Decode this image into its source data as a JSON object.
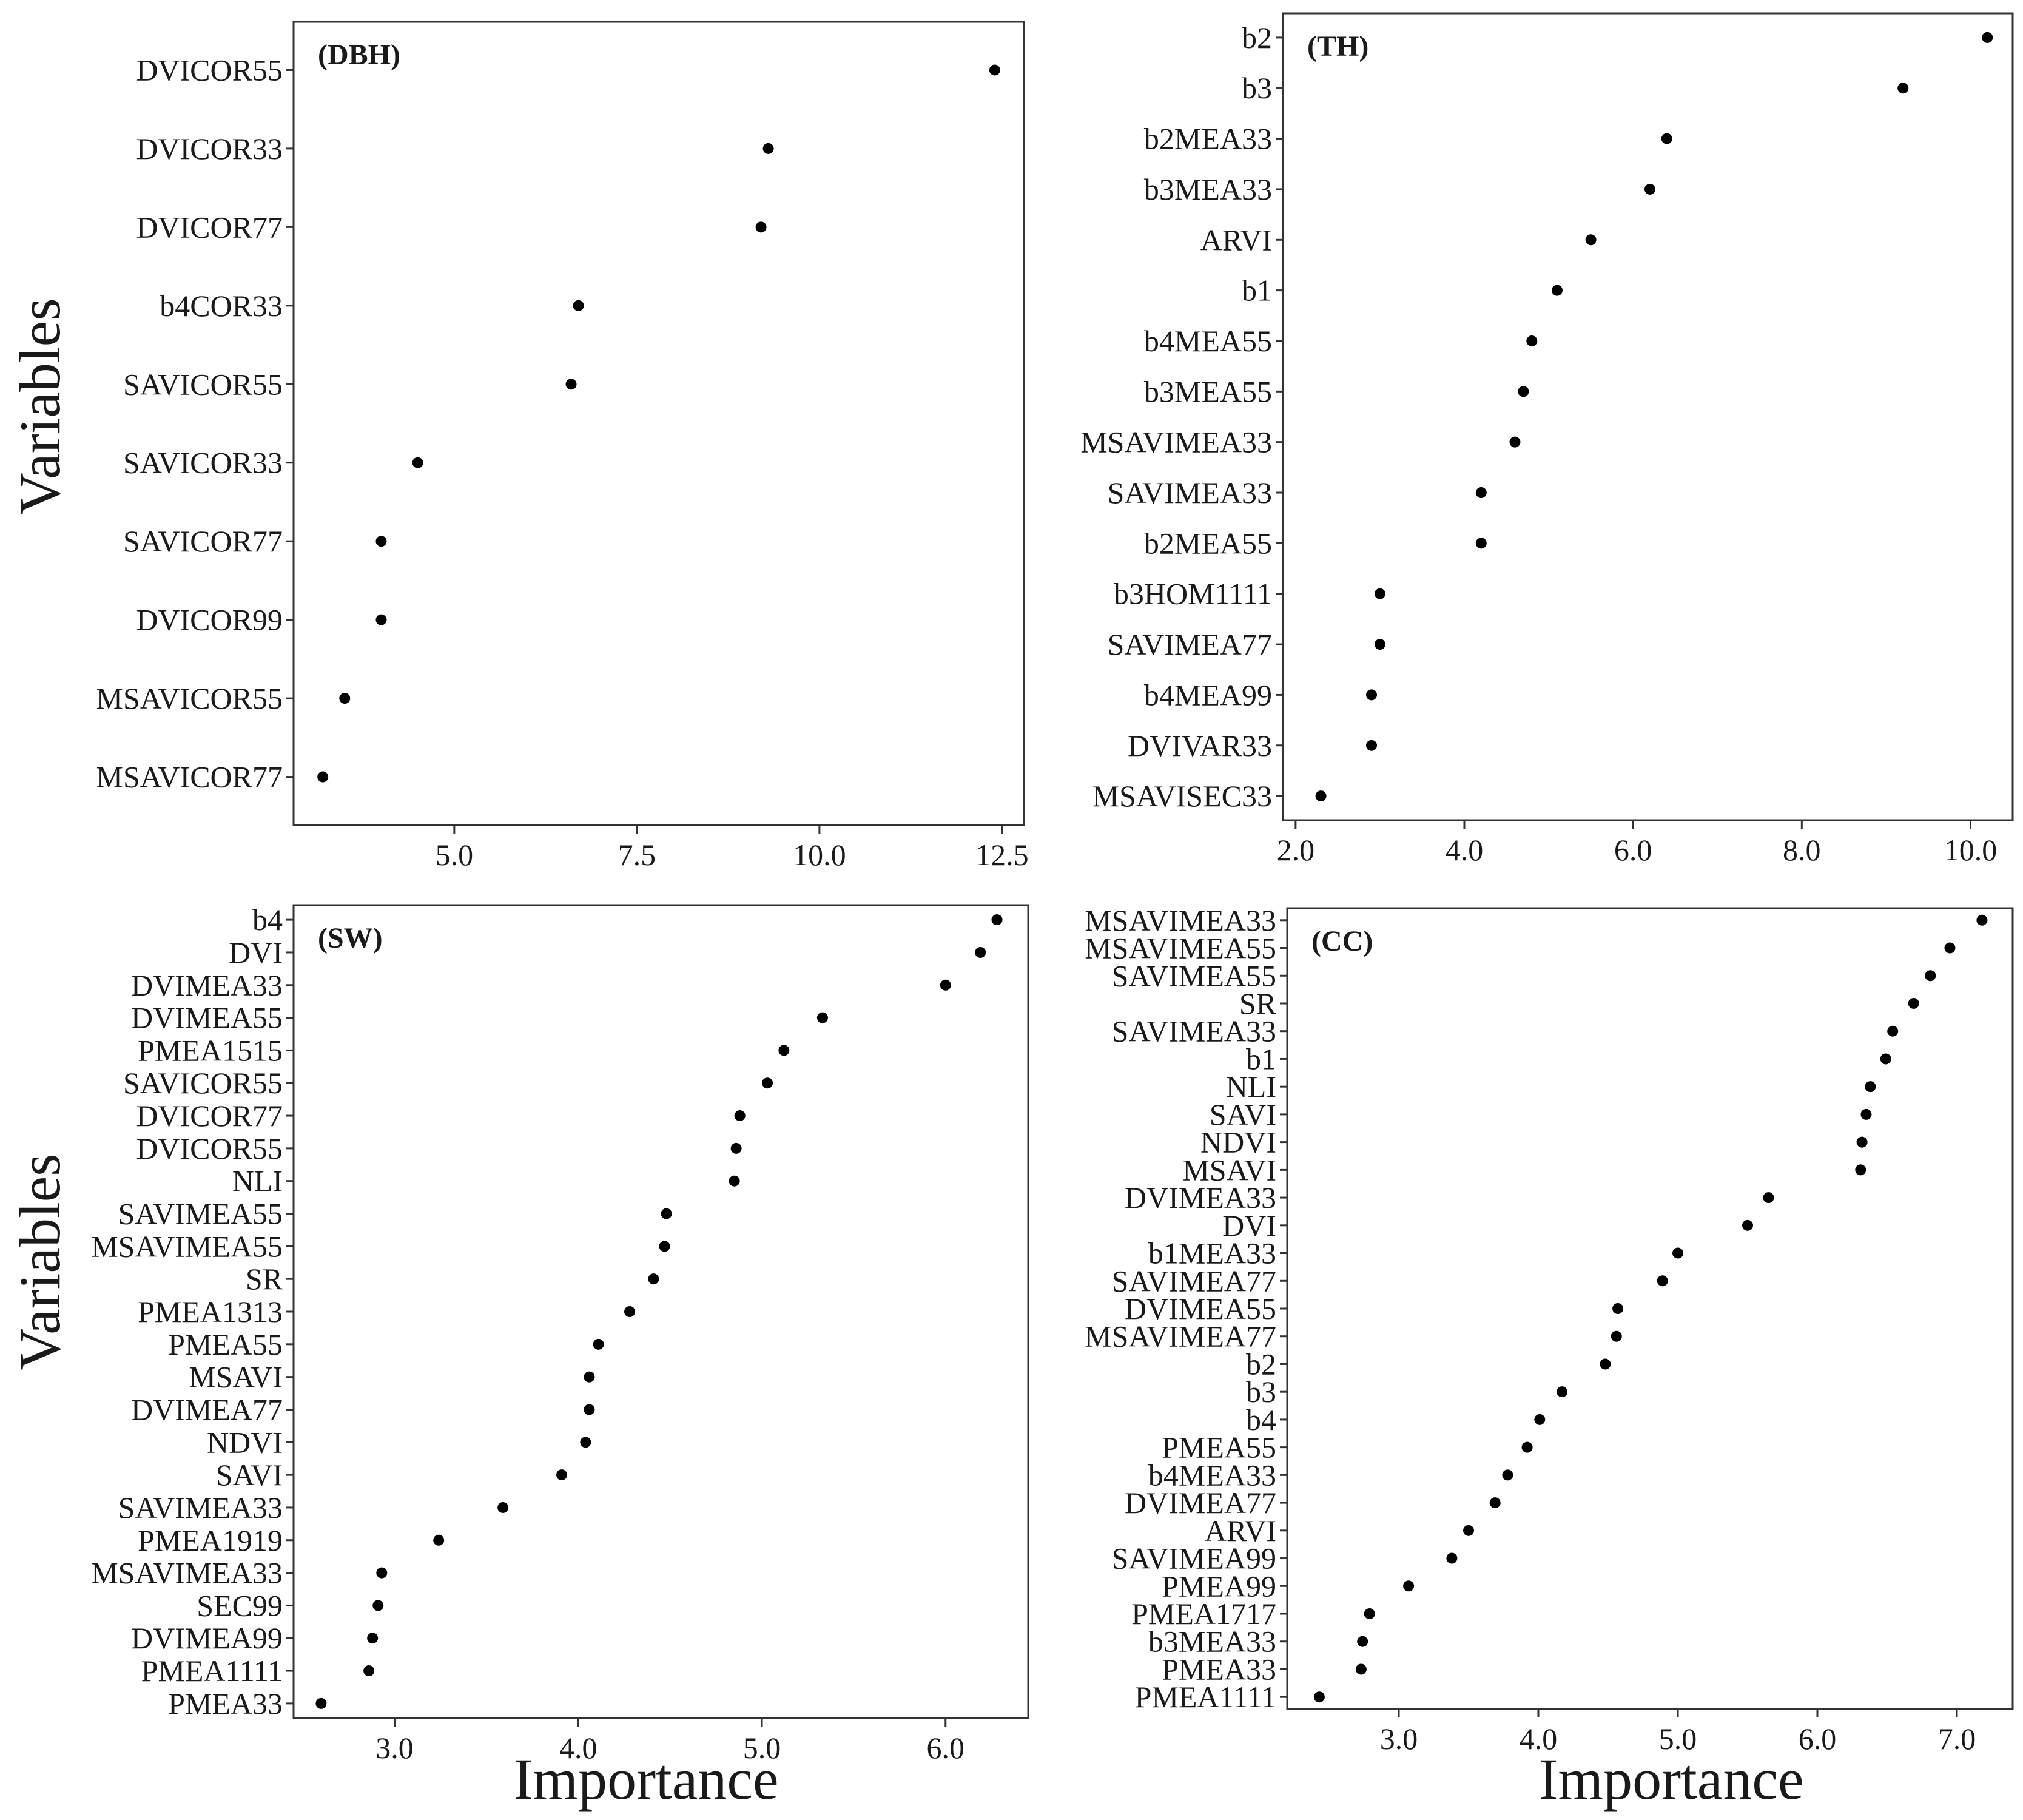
{
  "figure": {
    "y_axis_title": "Variables",
    "x_axis_title": "Importance"
  },
  "chart_data": [
    {
      "type": "scatter",
      "panel_label": "(DBH)",
      "xlabel": "",
      "ylabel": "Variables",
      "xlim": [
        2.8,
        12.8
      ],
      "xticks": [
        5.0,
        7.5,
        10.0,
        12.5
      ],
      "xtick_labels": [
        "5.0",
        "7.5",
        "10.0",
        "12.5"
      ],
      "grid": false,
      "categories": [
        "DVICOR55",
        "DVICOR33",
        "DVICOR77",
        "b4COR33",
        "SAVICOR55",
        "SAVICOR33",
        "SAVICOR77",
        "DVICOR99",
        "MSAVICOR55",
        "MSAVICOR77"
      ],
      "values": [
        12.4,
        9.3,
        9.2,
        6.7,
        6.6,
        4.5,
        4.0,
        4.0,
        3.5,
        3.2
      ]
    },
    {
      "type": "scatter",
      "panel_label": "(TH)",
      "xlabel": "",
      "ylabel": "",
      "xlim": [
        1.85,
        10.5
      ],
      "xticks": [
        2.0,
        4.0,
        6.0,
        8.0,
        10.0
      ],
      "xtick_labels": [
        "2.0",
        "4.0",
        "6.0",
        "8.0",
        "10.0"
      ],
      "grid": false,
      "categories": [
        "b2",
        "b3",
        "b2MEA33",
        "b3MEA33",
        "ARVI",
        "b1",
        "b4MEA55",
        "b3MEA55",
        "MSAVIMEA33",
        "SAVIMEA33",
        "b2MEA55",
        "b3HOM1111",
        "SAVIMEA77",
        "b4MEA99",
        "DVIVAR33",
        "MSAVISEC33"
      ],
      "values": [
        10.2,
        9.2,
        6.4,
        6.2,
        5.5,
        5.1,
        4.8,
        4.7,
        4.6,
        4.2,
        4.2,
        3.0,
        3.0,
        2.9,
        2.9,
        2.3
      ]
    },
    {
      "type": "scatter",
      "panel_label": "(SW)",
      "xlabel": "Importance",
      "ylabel": "Variables",
      "xlim": [
        2.45,
        6.45
      ],
      "xticks": [
        3.0,
        4.0,
        5.0,
        6.0
      ],
      "xtick_labels": [
        "3.0",
        "4.0",
        "5.0",
        "6.0"
      ],
      "grid": false,
      "categories": [
        "b4",
        "DVI",
        "DVIMEA33",
        "DVIMEA55",
        "PMEA1515",
        "SAVICOR55",
        "DVICOR77",
        "DVICOR55",
        "NLI",
        "SAVIMEA55",
        "MSAVIMEA55",
        "SR",
        "PMEA1313",
        "PMEA55",
        "MSAVI",
        "DVIMEA77",
        "NDVI",
        "SAVI",
        "SAVIMEA33",
        "PMEA1919",
        "MSAVIMEA33",
        "SEC99",
        "DVIMEA99",
        "PMEA1111",
        "PMEA33"
      ],
      "values": [
        6.28,
        6.19,
        6.0,
        5.33,
        5.12,
        5.03,
        4.88,
        4.86,
        4.85,
        4.48,
        4.47,
        4.41,
        4.28,
        4.11,
        4.06,
        4.06,
        4.04,
        3.91,
        3.59,
        3.24,
        2.93,
        2.91,
        2.88,
        2.86,
        2.6
      ]
    },
    {
      "type": "scatter",
      "panel_label": "(CC)",
      "xlabel": "Importance",
      "ylabel": "",
      "xlim": [
        2.2,
        7.4
      ],
      "xticks": [
        3.0,
        4.0,
        5.0,
        6.0,
        7.0
      ],
      "xtick_labels": [
        "3.0",
        "4.0",
        "5.0",
        "6.0",
        "7.0"
      ],
      "grid": false,
      "categories": [
        "MSAVIMEA33",
        "MSAVIMEA55",
        "SAVIMEA55",
        "SR",
        "SAVIMEA33",
        "b1",
        "NLI",
        "SAVI",
        "NDVI",
        "MSAVI",
        "DVIMEA33",
        "DVI",
        "b1MEA33",
        "SAVIMEA77",
        "DVIMEA55",
        "MSAVIMEA77",
        "b2",
        "b3",
        "b4",
        "PMEA55",
        "b4MEA33",
        "DVIMEA77",
        "ARVI",
        "SAVIMEA99",
        "PMEA99",
        "PMEA1717",
        "b3MEA33",
        "PMEA33",
        "PMEA1111"
      ],
      "values": [
        7.18,
        6.95,
        6.81,
        6.69,
        6.54,
        6.49,
        6.38,
        6.35,
        6.32,
        6.31,
        5.65,
        5.5,
        5.0,
        4.89,
        4.57,
        4.56,
        4.48,
        4.17,
        4.01,
        3.92,
        3.78,
        3.69,
        3.5,
        3.38,
        3.07,
        2.79,
        2.74,
        2.73,
        2.43
      ]
    }
  ]
}
